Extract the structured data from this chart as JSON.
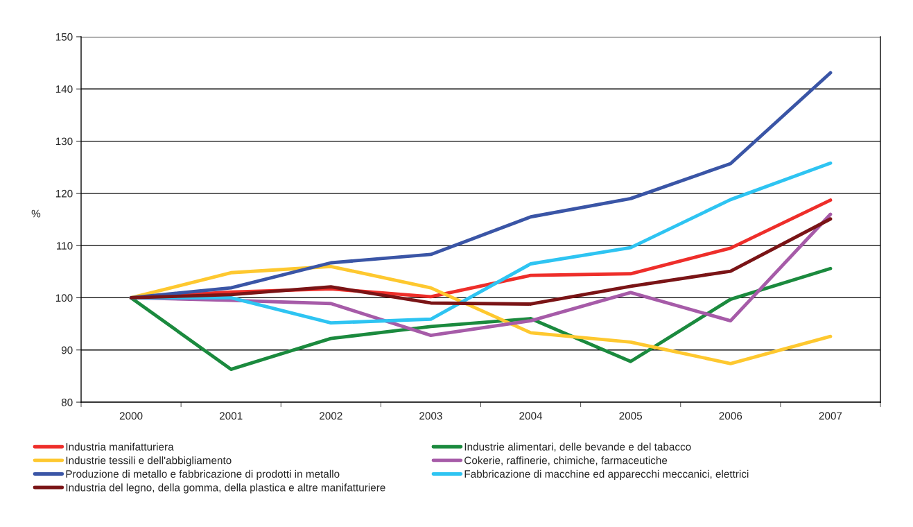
{
  "chart_data": {
    "type": "line",
    "ylabel": "%",
    "categories": [
      "2000",
      "2001",
      "2002",
      "2003",
      "2004",
      "2005",
      "2006",
      "2007"
    ],
    "series": [
      {
        "name": "Industria manifatturiera",
        "color": "#ee2e2a",
        "values": [
          100,
          101.1,
          101.7,
          100.2,
          104.3,
          104.6,
          109.5,
          118.7
        ]
      },
      {
        "name": "Industrie alimentari, delle bevande e del tabacco",
        "color": "#1b8a3e",
        "values": [
          100,
          86.3,
          92.2,
          94.5,
          96.0,
          87.8,
          99.7,
          105.6
        ]
      },
      {
        "name": "Industrie tessili e dell'abbigliamento",
        "color": "#fec82f",
        "values": [
          100,
          104.8,
          106.0,
          101.9,
          93.3,
          91.5,
          87.4,
          92.6
        ]
      },
      {
        "name": "Cokerie, raffinerie, chimiche, farmaceutiche",
        "color": "#a65ba8",
        "values": [
          100,
          99.5,
          98.9,
          92.8,
          95.6,
          101.0,
          95.6,
          116.0
        ]
      },
      {
        "name": "Produzione di metallo e fabbricazione di prodotti in metallo",
        "color": "#3a55a6",
        "values": [
          100,
          101.9,
          106.7,
          108.3,
          115.5,
          119.0,
          125.7,
          143.1
        ]
      },
      {
        "name": "Fabbricazione di macchine ed apparecchi meccanici, elettrici",
        "color": "#2ec4f2",
        "values": [
          100,
          100,
          95.2,
          95.9,
          106.5,
          109.6,
          118.8,
          125.8
        ]
      },
      {
        "name": "Industria del legno, della gomma, della plastica e altre manifatturiere",
        "color": "#7a1416",
        "values": [
          100,
          100.6,
          102.1,
          99.0,
          98.8,
          102.2,
          105.1,
          115.1
        ]
      }
    ],
    "ylim": [
      80,
      150
    ],
    "yticks": [
      80,
      90,
      100,
      110,
      120,
      130,
      140,
      150
    ],
    "grid": "y",
    "legend": "bottom",
    "marker": "none",
    "line_style": "solid"
  }
}
